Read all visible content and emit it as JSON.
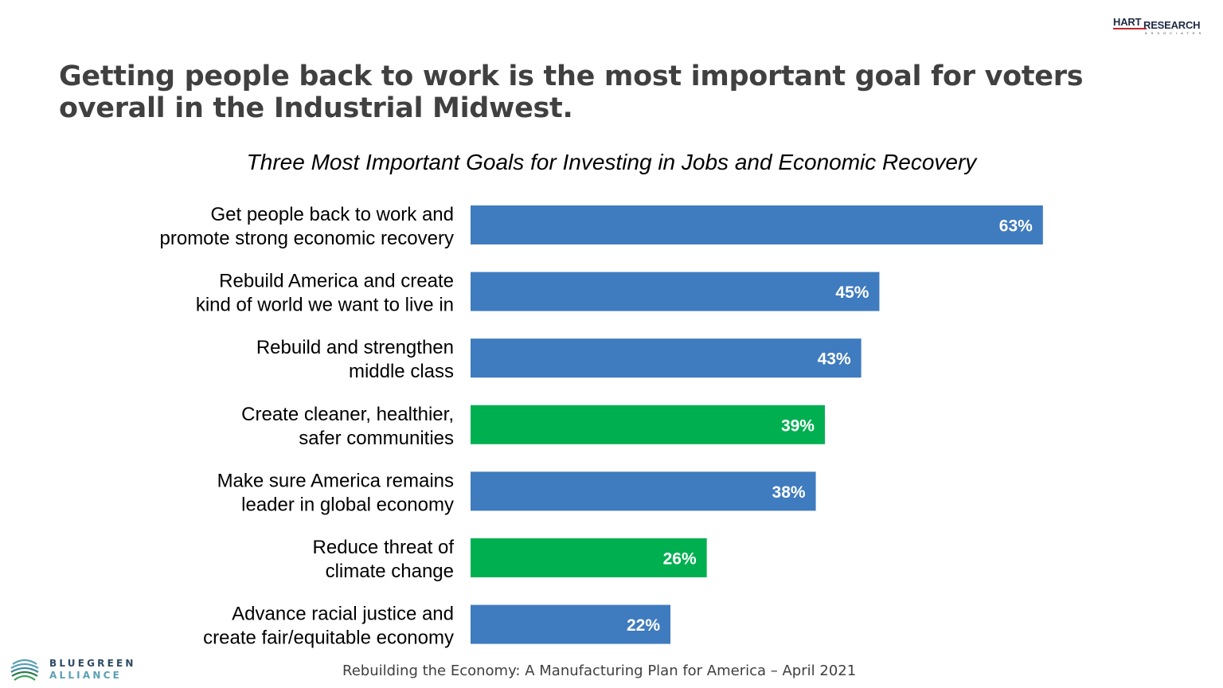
{
  "header": {
    "logo_top": "HART",
    "logo_main": "RESEARCH",
    "logo_sub": "ASSOCIATES",
    "headline": "Getting people back to work is the most important goal for voters overall in the Industrial Midwest."
  },
  "footer": {
    "text": "Rebuilding the Economy: A Manufacturing Plan for America – April 2021",
    "logo_line1": "BLUEGREEN",
    "logo_line2": "ALLIANCE"
  },
  "colors": {
    "blue": "#3f7bbf",
    "green": "#00b050",
    "label_text": "#ffffff"
  },
  "chart_data": {
    "type": "bar",
    "orientation": "horizontal",
    "title": "Three Most Important Goals for Investing in Jobs and Economic Recovery",
    "categories": [
      [
        "Get people back to work and",
        "promote strong economic recovery"
      ],
      [
        "Rebuild America and create",
        "kind of world we want to live in"
      ],
      [
        "Rebuild and strengthen",
        "middle class"
      ],
      [
        "Create cleaner, healthier,",
        "safer communities"
      ],
      [
        "Make sure America remains",
        "leader in global economy"
      ],
      [
        "Reduce threat of",
        "climate change"
      ],
      [
        "Advance racial justice and",
        "create fair/equitable economy"
      ]
    ],
    "values": [
      63,
      45,
      43,
      39,
      38,
      26,
      22
    ],
    "data_labels": [
      "63%",
      "45%",
      "43%",
      "39%",
      "38%",
      "26%",
      "22%"
    ],
    "bar_colors": [
      "blue",
      "blue",
      "blue",
      "green",
      "blue",
      "green",
      "blue"
    ],
    "xlim": [
      0,
      100
    ],
    "grid": false,
    "legend": "none"
  }
}
